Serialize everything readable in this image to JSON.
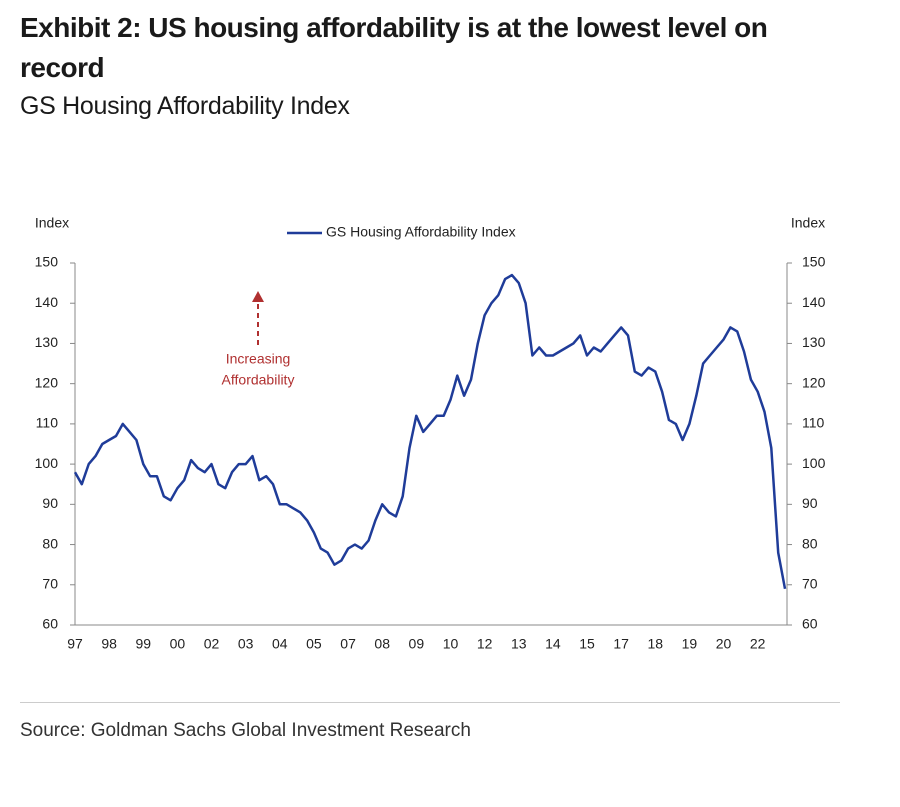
{
  "chart_data": {
    "type": "line",
    "title": "Exhibit 2: US housing affordability is at the lowest level on record",
    "subtitle": "GS Housing Affordability Index",
    "y_label": "Index",
    "y2_label": "Index",
    "annotation": [
      "Increasing",
      "Affordability"
    ],
    "source": "Source: Goldman Sachs Global Investment Research",
    "categories": [
      "97",
      null,
      null,
      null,
      null,
      "98",
      null,
      null,
      null,
      null,
      "99",
      null,
      null,
      null,
      null,
      "00",
      null,
      null,
      null,
      null,
      "02",
      null,
      null,
      null,
      null,
      "03",
      null,
      null,
      null,
      null,
      "04",
      null,
      null,
      null,
      null,
      "05",
      null,
      null,
      null,
      null,
      "07",
      null,
      null,
      null,
      null,
      "08",
      null,
      null,
      null,
      null,
      "09",
      null,
      null,
      null,
      null,
      "10",
      null,
      null,
      null,
      null,
      "12",
      null,
      null,
      null,
      null,
      "13",
      null,
      null,
      null,
      null,
      "14",
      null,
      null,
      null,
      null,
      "15",
      null,
      null,
      null,
      null,
      "17",
      null,
      null,
      null,
      null,
      "18",
      null,
      null,
      null,
      null,
      "19",
      null,
      null,
      null,
      null,
      "20",
      null,
      null,
      null,
      null,
      "22",
      null,
      null,
      null,
      null
    ],
    "series": [
      {
        "name": "GS Housing Affordability Index",
        "color": "#1f3c99",
        "values": [
          98,
          95,
          100,
          102,
          105,
          106,
          107,
          110,
          108,
          106,
          100,
          97,
          97,
          92,
          91,
          94,
          96,
          101,
          99,
          98,
          100,
          95,
          94,
          98,
          100,
          100,
          102,
          96,
          97,
          95,
          90,
          90,
          89,
          88,
          86,
          83,
          79,
          78,
          75,
          76,
          79,
          80,
          79,
          81,
          86,
          90,
          88,
          87,
          92,
          104,
          112,
          108,
          110,
          112,
          112,
          116,
          122,
          117,
          121,
          130,
          137,
          140,
          142,
          146,
          147,
          145,
          140,
          127,
          129,
          127,
          127,
          128,
          129,
          130,
          132,
          127,
          129,
          128,
          130,
          132,
          134,
          132,
          123,
          122,
          124,
          123,
          118,
          111,
          110,
          106,
          110,
          117,
          125,
          127,
          129,
          131,
          134,
          133,
          128,
          121,
          118,
          113,
          104,
          78,
          69
        ]
      }
    ],
    "ylim": [
      60,
      150
    ],
    "yticks": [
      60,
      70,
      80,
      90,
      100,
      110,
      120,
      130,
      140,
      150
    ],
    "grid": false,
    "legend": "top"
  }
}
